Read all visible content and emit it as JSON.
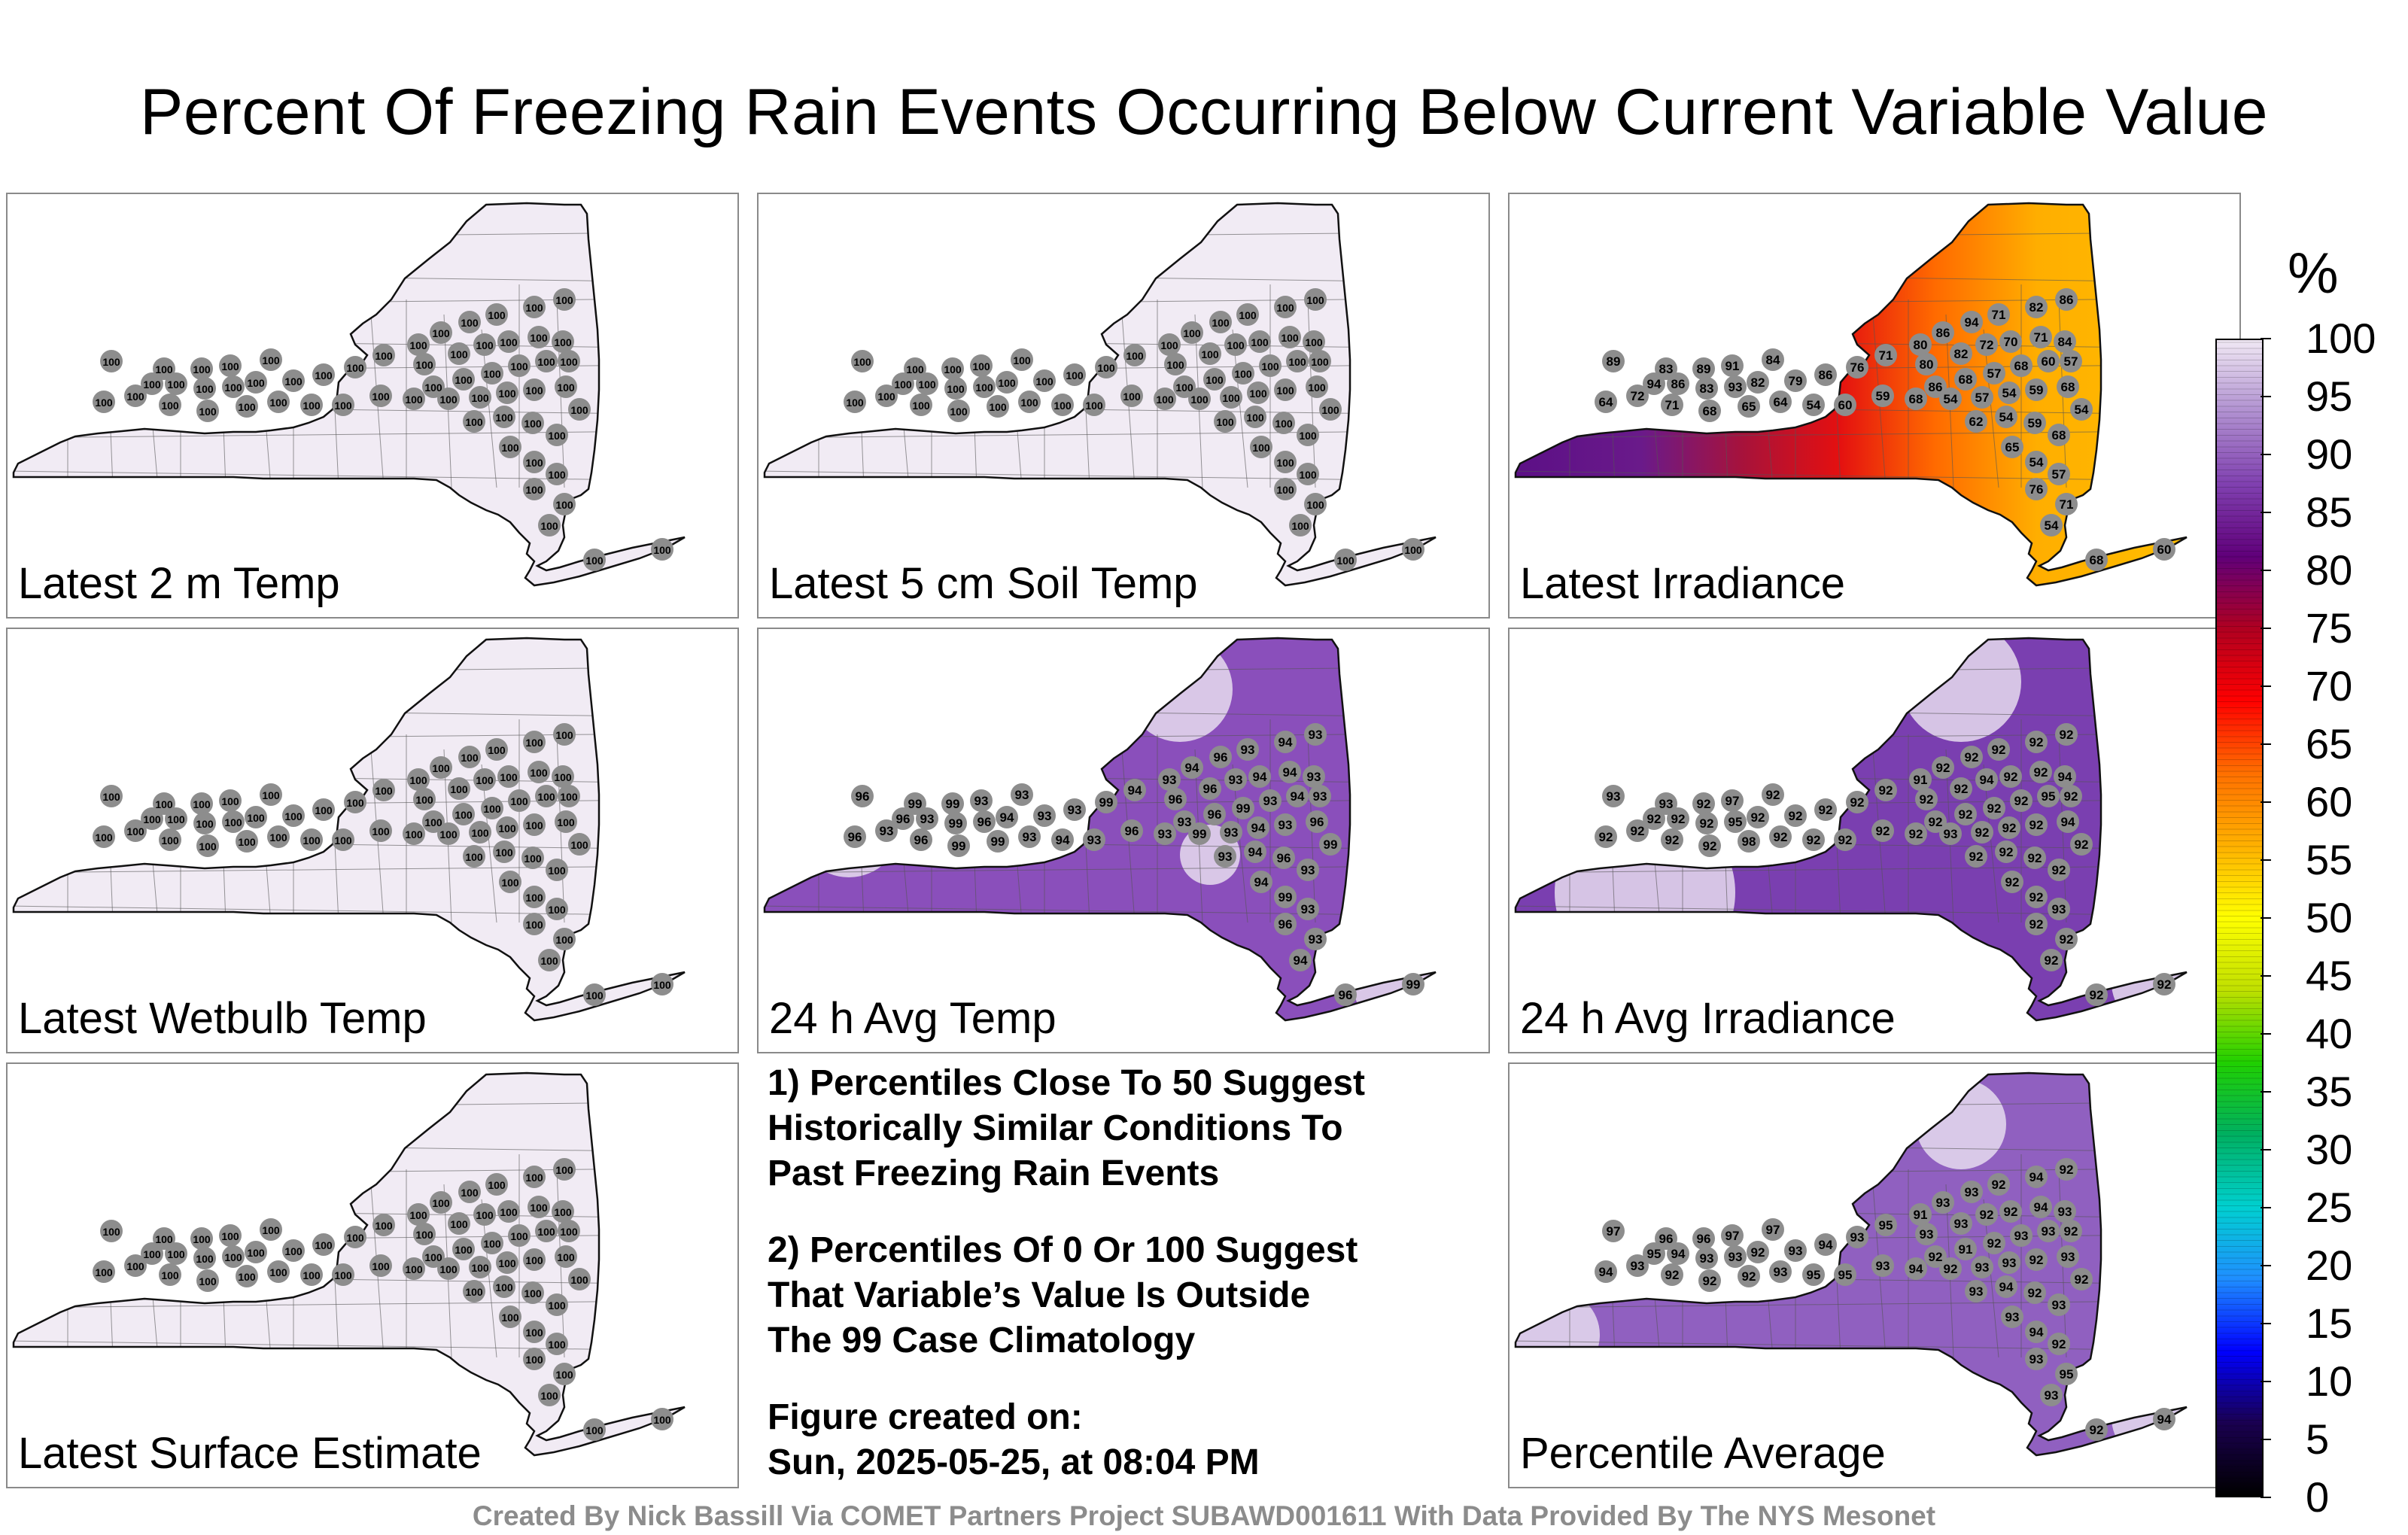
{
  "title": "Percent Of Freezing Rain Events Occurring Below Current Variable Value",
  "panels": [
    {
      "label": "Latest 2 m Temp",
      "scheme": "flat"
    },
    {
      "label": "Latest 5 cm Soil Temp",
      "scheme": "flat"
    },
    {
      "label": "Latest Irradiance",
      "scheme": "irradiance"
    },
    {
      "label": "Latest Wetbulb Temp",
      "scheme": "flat"
    },
    {
      "label": "24 h Avg Temp",
      "scheme": "avgtemp"
    },
    {
      "label": "24 h Avg Irradiance",
      "scheme": "avgirr"
    },
    {
      "label": "Latest Surface Estimate",
      "scheme": "flat"
    },
    {
      "label": "Percentile Average",
      "scheme": "pctavg"
    }
  ],
  "notes": [
    "1) Percentiles Close To 50 Suggest\nHistorically Similar Conditions To\nPast Freezing Rain Events",
    "2) Percentiles Of 0 Or 100 Suggest\nThat Variable’s Value Is Outside\nThe 99 Case Climatology",
    "Figure created on:\nSun, 2025-05-25, at 08:04 PM"
  ],
  "colorbar": {
    "unit": "%",
    "ticks": [
      "0",
      "5",
      "10",
      "15",
      "20",
      "25",
      "30",
      "35",
      "40",
      "45",
      "50",
      "55",
      "60",
      "65",
      "70",
      "75",
      "80",
      "85",
      "90",
      "95",
      "100"
    ],
    "stops": [
      "#000000",
      "#1a0050",
      "#0000ff",
      "#1f8fff",
      "#00d0d0",
      "#00b060",
      "#20d000",
      "#c0e000",
      "#ffff00",
      "#ffb000",
      "#ff7000",
      "#ff0000",
      "#b00020",
      "#60007a",
      "#8040b0",
      "#b090d0",
      "#f0e8f4"
    ]
  },
  "footer": "Created By Nick Bassill Via COMET Partners Project SUBAWD001611 With Data Provided By The NYS Mesonet",
  "stations": {
    "flat": [
      100,
      100,
      100,
      100,
      100,
      100,
      100,
      100,
      100,
      100,
      100,
      100,
      100,
      100,
      100,
      100,
      100,
      100,
      100,
      100,
      100,
      100,
      100,
      100,
      100,
      100,
      100,
      100,
      100,
      100,
      100,
      100,
      100,
      100,
      100,
      100,
      100,
      100,
      100,
      100,
      100,
      100,
      100,
      100,
      100,
      100,
      100,
      100,
      100,
      100,
      100,
      100,
      100,
      100,
      100,
      100,
      100,
      100,
      100,
      100
    ],
    "irradiance": [
      89,
      83,
      89,
      91,
      84,
      94,
      86,
      83,
      93,
      82,
      79,
      86,
      76,
      71,
      80,
      86,
      94,
      71,
      82,
      86,
      80,
      82,
      72,
      70,
      71,
      84,
      86,
      68,
      57,
      68,
      60,
      57,
      64,
      72,
      71,
      68,
      65,
      64,
      54,
      60,
      59,
      68,
      54,
      57,
      54,
      59,
      68,
      54,
      62,
      54,
      59,
      68,
      65,
      54,
      57,
      76,
      71,
      54,
      68,
      60
    ],
    "avgtemp": [
      96,
      99,
      99,
      93,
      93,
      96,
      93,
      99,
      96,
      94,
      93,
      93,
      99,
      94,
      93,
      94,
      96,
      93,
      94,
      93,
      96,
      96,
      93,
      94,
      94,
      93,
      93,
      96,
      99,
      93,
      94,
      93,
      96,
      93,
      96,
      99,
      99,
      93,
      94,
      93,
      96,
      93,
      99,
      93,
      94,
      93,
      96,
      99,
      93,
      94,
      96,
      93,
      94,
      99,
      93,
      96,
      93,
      94,
      96,
      99
    ],
    "avgirr": [
      93,
      93,
      92,
      97,
      92,
      92,
      92,
      92,
      95,
      92,
      92,
      92,
      92,
      92,
      91,
      92,
      92,
      92,
      92,
      92,
      92,
      92,
      94,
      92,
      92,
      94,
      92,
      92,
      92,
      92,
      95,
      92,
      92,
      92,
      92,
      92,
      98,
      92,
      92,
      92,
      92,
      92,
      93,
      92,
      92,
      92,
      94,
      92,
      92,
      92,
      92,
      92,
      92,
      92,
      93,
      92,
      92,
      92,
      92,
      92
    ],
    "pctavg": [
      97,
      96,
      96,
      97,
      97,
      95,
      94,
      93,
      93,
      92,
      93,
      94,
      93,
      95,
      91,
      93,
      93,
      92,
      94,
      92,
      93,
      93,
      92,
      92,
      94,
      93,
      92,
      91,
      92,
      93,
      93,
      92,
      94,
      93,
      92,
      92,
      92,
      93,
      95,
      95,
      93,
      94,
      92,
      93,
      93,
      92,
      93,
      92,
      93,
      94,
      92,
      93,
      93,
      94,
      92,
      93,
      95,
      93,
      92,
      94
    ]
  }
}
